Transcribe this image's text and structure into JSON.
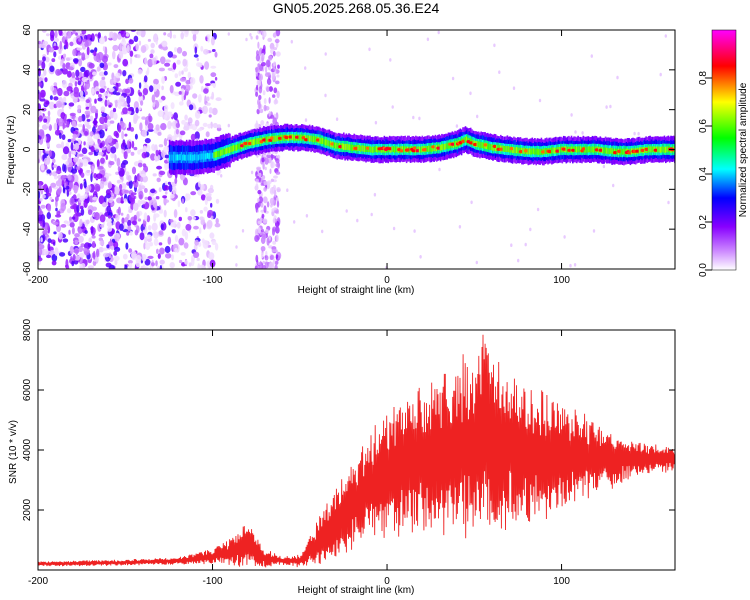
{
  "title": "GN05.2025.268.05.36.E24",
  "colors": {
    "snr_line": "#ee2222",
    "frame": "#000000",
    "colormap": [
      "#ffffff",
      "#8800ff",
      "#0000ff",
      "#00ffff",
      "#00ff00",
      "#ffff00",
      "#ff0000",
      "#ff00ff"
    ]
  },
  "chart_data": [
    {
      "type": "heatmap",
      "id": "spectrogram",
      "title": "GN05.2025.268.05.36.E24",
      "xlabel": "Height of straight line (km)",
      "ylabel": "Frequency (Hz)",
      "xlim": [
        -200,
        165
      ],
      "ylim": [
        -60,
        60
      ],
      "x_ticks": [
        -200,
        -100,
        0,
        100
      ],
      "y_ticks": [
        -60,
        -40,
        -20,
        0,
        20,
        40,
        60
      ],
      "colorbar": {
        "label": "Normalized spectral amplitude",
        "range": [
          0,
          1
        ],
        "ticks": [
          "0.0",
          "0.2",
          "0.4",
          "0.6",
          "0.8"
        ]
      },
      "ridge": {
        "description": "peak frequency of main spectral line vs height",
        "x": [
          -125,
          -110,
          -100,
          -90,
          -80,
          -70,
          -60,
          -50,
          -40,
          -30,
          -20,
          -10,
          0,
          10,
          20,
          30,
          40,
          45,
          50,
          60,
          70,
          80,
          90,
          100,
          110,
          120,
          130,
          140,
          150,
          165
        ],
        "y": [
          -4,
          -4,
          -3,
          0,
          3,
          5,
          6,
          6,
          5,
          2,
          1,
          0,
          0,
          0,
          0,
          1,
          3,
          5,
          3,
          1,
          0,
          -1,
          -1,
          0,
          0,
          0,
          -1,
          -1,
          0,
          0
        ]
      },
      "noise_region": {
        "description": "scattered broadband low-amplitude energy",
        "x_range": [
          -200,
          -105
        ],
        "secondary_band_x": [
          -75,
          -62
        ]
      }
    },
    {
      "type": "line",
      "id": "snr",
      "xlabel": "Height of straight line (km)",
      "ylabel": "SNR (10 * v/v)",
      "xlim": [
        -200,
        165
      ],
      "ylim": [
        0,
        8000
      ],
      "x_ticks": [
        -200,
        -100,
        0,
        100
      ],
      "y_ticks": [
        2000,
        4000,
        6000,
        8000
      ],
      "envelope": {
        "description": "approximate mean and half-width of the oscillating SNR trace",
        "x": [
          -200,
          -150,
          -120,
          -100,
          -90,
          -80,
          -75,
          -70,
          -60,
          -50,
          -40,
          -30,
          -20,
          -10,
          0,
          10,
          20,
          30,
          40,
          50,
          55,
          60,
          70,
          80,
          90,
          100,
          110,
          120,
          140,
          165
        ],
        "mean": [
          200,
          250,
          300,
          450,
          600,
          900,
          600,
          400,
          300,
          300,
          900,
          1500,
          2200,
          2800,
          3200,
          3400,
          3600,
          3900,
          4000,
          4200,
          4300,
          4100,
          4000,
          3900,
          3800,
          3800,
          3800,
          3700,
          3700,
          3700
        ],
        "half_width": [
          80,
          100,
          120,
          250,
          400,
          800,
          500,
          300,
          150,
          200,
          700,
          1200,
          1500,
          1800,
          2000,
          2200,
          2400,
          2600,
          2800,
          3200,
          3500,
          3000,
          2500,
          2200,
          2000,
          1700,
          1500,
          1200,
          600,
          400
        ]
      },
      "series": [
        {
          "name": "SNR",
          "color": "#ee2222"
        }
      ]
    }
  ]
}
